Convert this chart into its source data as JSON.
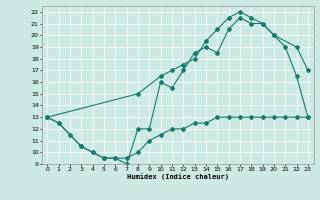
{
  "xlabel": "Humidex (Indice chaleur)",
  "xlim": [
    -0.5,
    23.5
  ],
  "ylim": [
    9,
    22.5
  ],
  "yticks": [
    9,
    10,
    11,
    12,
    13,
    14,
    15,
    16,
    17,
    18,
    19,
    20,
    21,
    22
  ],
  "xticks": [
    0,
    1,
    2,
    3,
    4,
    5,
    6,
    7,
    8,
    9,
    10,
    11,
    12,
    13,
    14,
    15,
    16,
    17,
    18,
    19,
    20,
    21,
    22,
    23
  ],
  "bg_color": "#cce9e4",
  "line_color": "#1a7a6e",
  "line1_x": [
    0,
    1,
    2,
    3,
    4,
    5,
    6,
    7,
    8,
    9,
    10,
    11,
    12,
    13,
    14,
    15,
    16,
    17,
    18,
    19,
    20,
    21,
    22,
    23
  ],
  "line1_y": [
    13,
    12.5,
    11.5,
    10.5,
    10,
    9.5,
    9.5,
    9.5,
    10,
    11,
    11.5,
    12,
    12,
    12.5,
    12.5,
    13,
    13,
    13,
    13,
    13,
    13,
    13,
    13,
    13
  ],
  "line2_x": [
    0,
    1,
    3,
    4,
    5,
    6,
    7,
    8,
    9,
    10,
    11,
    12,
    13,
    14,
    15,
    16,
    17,
    18,
    19,
    20,
    21,
    22,
    23
  ],
  "line2_y": [
    13,
    12.5,
    10.5,
    10,
    9.5,
    9.5,
    9,
    12,
    12,
    16,
    15.5,
    17,
    18.5,
    19,
    18.5,
    20.5,
    21.5,
    21,
    21,
    20,
    19,
    16.5,
    13
  ],
  "line3_x": [
    0,
    8,
    10,
    11,
    12,
    13,
    14,
    15,
    16,
    17,
    18,
    19,
    20,
    22,
    23
  ],
  "line3_y": [
    13,
    15,
    16.5,
    17,
    17.5,
    18,
    19.5,
    20.5,
    21.5,
    22,
    21.5,
    21,
    20,
    19,
    17
  ]
}
